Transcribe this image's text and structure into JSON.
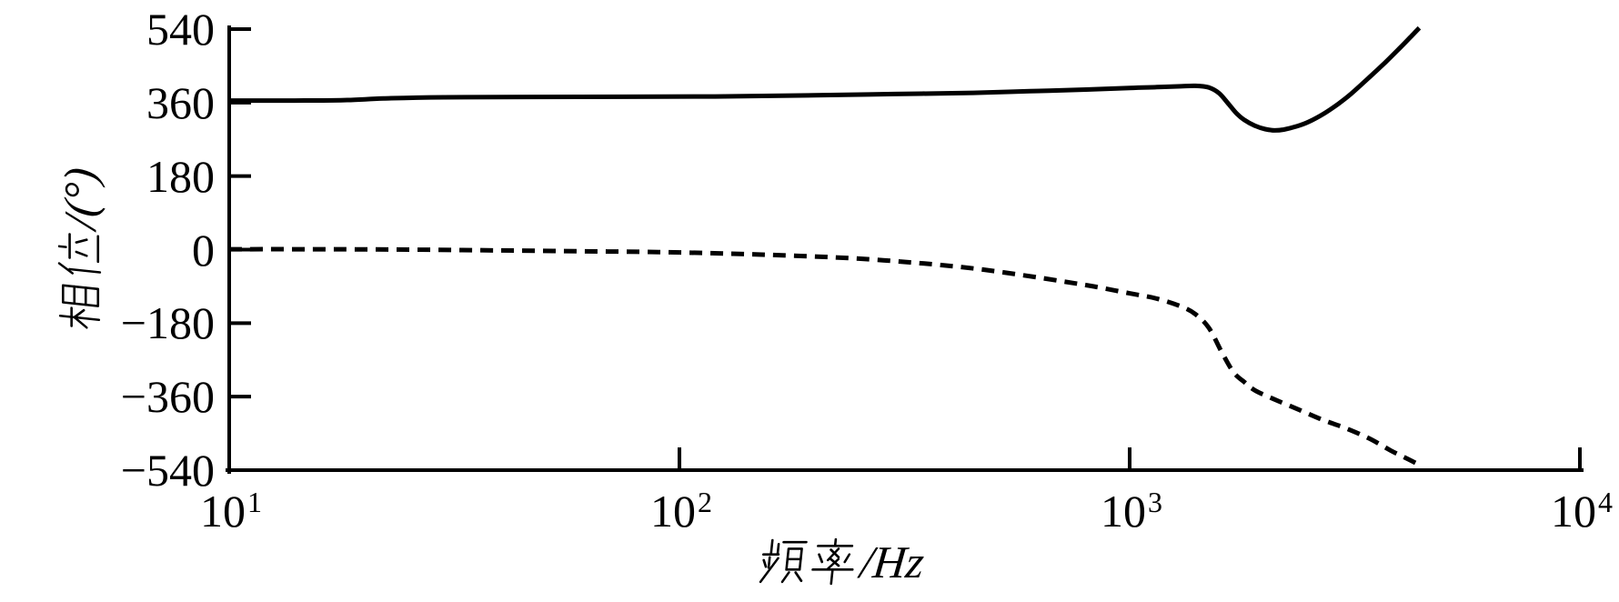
{
  "figure": {
    "background": "#ffffff",
    "line_color": "#000000"
  },
  "axis_titles": {
    "y_full": "相位/(°)",
    "y_cjk": "相位",
    "y_suffix": "/(°)",
    "x_full": "频率/Hz",
    "x_cjk": "频率",
    "x_suffix": "/Hz"
  },
  "chart_data": {
    "type": "line",
    "title": "",
    "xlabel": "频率/Hz",
    "ylabel": "相位/(°)",
    "x_scale": "log",
    "xlim": [
      10,
      10000
    ],
    "ylim": [
      -540,
      540
    ],
    "grid": false,
    "legend": "none",
    "x_ticks": [
      {
        "base": "10",
        "exponent": "1",
        "value": 10
      },
      {
        "base": "10",
        "exponent": "2",
        "value": 100
      },
      {
        "base": "10",
        "exponent": "3",
        "value": 1000
      },
      {
        "base": "10",
        "exponent": "4",
        "value": 10000
      }
    ],
    "x_inner_tick_values": [
      100,
      1000,
      10000
    ],
    "y_ticks": [
      {
        "label": "540",
        "value": 540
      },
      {
        "label": "360",
        "value": 360
      },
      {
        "label": "180",
        "value": 180
      },
      {
        "label": "0",
        "value": 0
      },
      {
        "label": "−180",
        "value": -180
      },
      {
        "label": "−360",
        "value": -360
      },
      {
        "label": "−540",
        "value": -540
      }
    ],
    "series": [
      {
        "name": "phase-curve-solid",
        "style": "solid",
        "points_f_hz_deg": [
          [
            10,
            365
          ],
          [
            14,
            365
          ],
          [
            18,
            366
          ],
          [
            22,
            370
          ],
          [
            30,
            373
          ],
          [
            60,
            374
          ],
          [
            120,
            375
          ],
          [
            200,
            378
          ],
          [
            300,
            381
          ],
          [
            450,
            384
          ],
          [
            600,
            388
          ],
          [
            800,
            392
          ],
          [
            1000,
            396
          ],
          [
            1150,
            398
          ],
          [
            1300,
            400
          ],
          [
            1400,
            401
          ],
          [
            1500,
            397
          ],
          [
            1580,
            383
          ],
          [
            1660,
            356
          ],
          [
            1730,
            333
          ],
          [
            1800,
            317
          ],
          [
            1900,
            303
          ],
          [
            2000,
            295
          ],
          [
            2100,
            292
          ],
          [
            2200,
            294
          ],
          [
            2350,
            302
          ],
          [
            2500,
            313
          ],
          [
            2700,
            333
          ],
          [
            2900,
            356
          ],
          [
            3100,
            381
          ],
          [
            3400,
            421
          ],
          [
            3700,
            459
          ],
          [
            4000,
            496
          ],
          [
            4200,
            520
          ],
          [
            4400,
            543
          ]
        ]
      },
      {
        "name": "phase-curve-dashed",
        "style": "dashed",
        "points_f_hz_deg": [
          [
            10,
            1
          ],
          [
            15,
            1
          ],
          [
            25,
            0
          ],
          [
            40,
            -2
          ],
          [
            60,
            -4
          ],
          [
            90,
            -6
          ],
          [
            130,
            -10
          ],
          [
            180,
            -15
          ],
          [
            250,
            -22
          ],
          [
            350,
            -34
          ],
          [
            450,
            -46
          ],
          [
            550,
            -59
          ],
          [
            650,
            -71
          ],
          [
            750,
            -82
          ],
          [
            850,
            -92
          ],
          [
            1000,
            -107
          ],
          [
            1150,
            -120
          ],
          [
            1300,
            -139
          ],
          [
            1400,
            -158
          ],
          [
            1500,
            -192
          ],
          [
            1600,
            -250
          ],
          [
            1700,
            -300
          ],
          [
            1800,
            -325
          ],
          [
            1900,
            -345
          ],
          [
            2100,
            -367
          ],
          [
            2400,
            -394
          ],
          [
            2700,
            -418
          ],
          [
            3000,
            -436
          ],
          [
            3400,
            -462
          ],
          [
            3800,
            -492
          ],
          [
            4100,
            -510
          ],
          [
            4400,
            -527
          ]
        ]
      }
    ]
  }
}
